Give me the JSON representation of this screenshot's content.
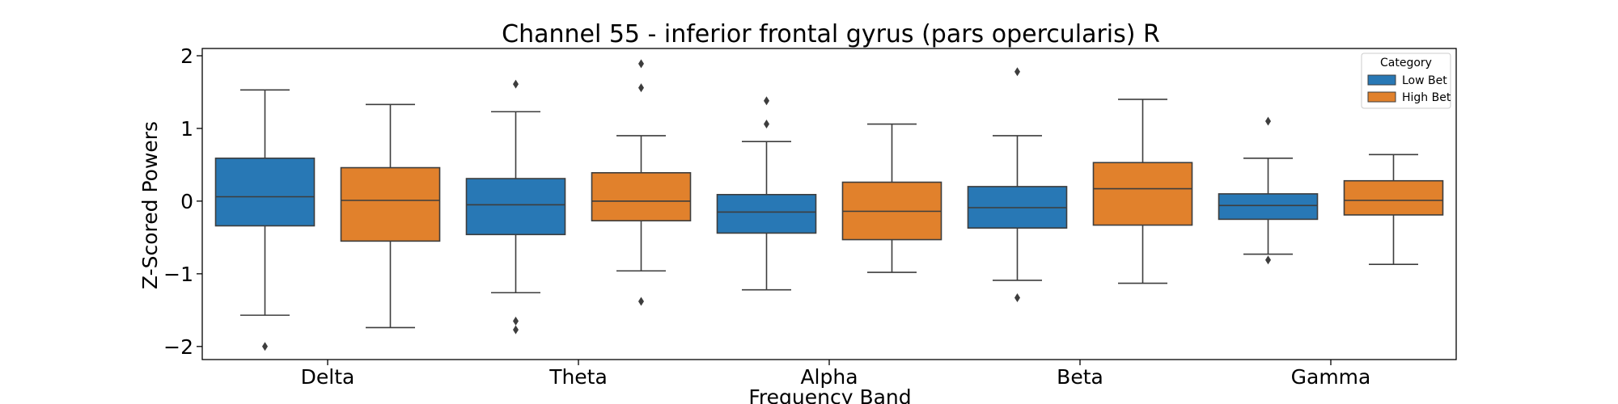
{
  "chart_data": {
    "type": "box",
    "title": "Channel 55 - inferior frontal gyrus (pars opercularis) R",
    "xlabel": "Frequency Band",
    "ylabel": "Z-Scored Powers",
    "ylim": [
      -2.18,
      2.1
    ],
    "yticks": [
      2,
      1,
      0,
      -1,
      -2
    ],
    "ytick_labels": [
      "2",
      "1",
      "0",
      "−1",
      "−2"
    ],
    "grid": false,
    "legend": {
      "title": "Category",
      "position": "top-right"
    },
    "categories": [
      "Delta",
      "Theta",
      "Alpha",
      "Beta",
      "Gamma"
    ],
    "series": [
      {
        "name": "Low Bet",
        "color": "#2878b5",
        "boxes": [
          {
            "whisker_low": -1.57,
            "q1": -0.34,
            "median": 0.06,
            "q3": 0.59,
            "whisker_high": 1.53,
            "outliers": [
              -2.0
            ]
          },
          {
            "whisker_low": -1.26,
            "q1": -0.46,
            "median": -0.05,
            "q3": 0.31,
            "whisker_high": 1.23,
            "outliers": [
              1.61,
              -1.65,
              -1.77
            ]
          },
          {
            "whisker_low": -1.22,
            "q1": -0.44,
            "median": -0.15,
            "q3": 0.09,
            "whisker_high": 0.82,
            "outliers": [
              1.38,
              1.06
            ]
          },
          {
            "whisker_low": -1.09,
            "q1": -0.37,
            "median": -0.09,
            "q3": 0.2,
            "whisker_high": 0.9,
            "outliers": [
              1.78,
              -1.33
            ]
          },
          {
            "whisker_low": -0.73,
            "q1": -0.25,
            "median": -0.06,
            "q3": 0.1,
            "whisker_high": 0.59,
            "outliers": [
              1.1,
              -0.81
            ]
          }
        ]
      },
      {
        "name": "High Bet",
        "color": "#e1812c",
        "boxes": [
          {
            "whisker_low": -1.74,
            "q1": -0.55,
            "median": 0.01,
            "q3": 0.46,
            "whisker_high": 1.33,
            "outliers": []
          },
          {
            "whisker_low": -0.96,
            "q1": -0.27,
            "median": 0.0,
            "q3": 0.39,
            "whisker_high": 0.9,
            "outliers": [
              1.89,
              1.56,
              -1.38
            ]
          },
          {
            "whisker_low": -0.98,
            "q1": -0.53,
            "median": -0.14,
            "q3": 0.26,
            "whisker_high": 1.06,
            "outliers": []
          },
          {
            "whisker_low": -1.13,
            "q1": -0.33,
            "median": 0.17,
            "q3": 0.53,
            "whisker_high": 1.4,
            "outliers": []
          },
          {
            "whisker_low": -0.87,
            "q1": -0.19,
            "median": 0.01,
            "q3": 0.28,
            "whisker_high": 0.64,
            "outliers": []
          }
        ]
      }
    ]
  }
}
